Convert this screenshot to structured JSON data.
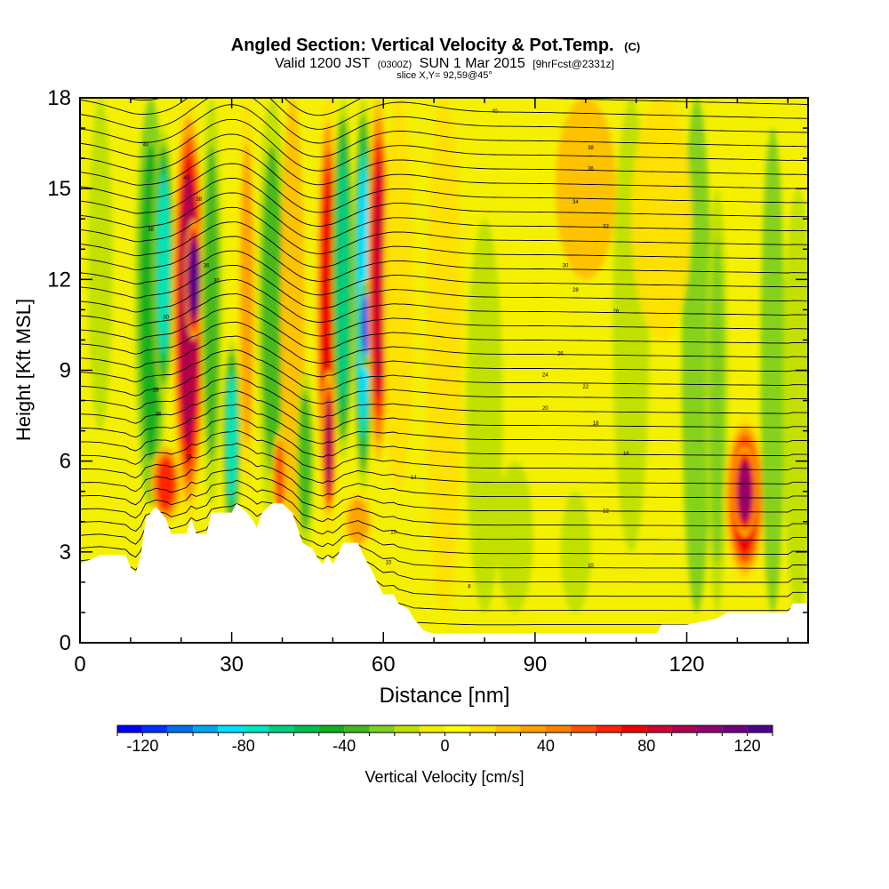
{
  "chart_data": {
    "type": "heatmap",
    "title": "Angled Section: Vertical Velocity & Pot.Temp.",
    "title_units": "(C)",
    "subtitle_parts": [
      "Valid 1200 JST",
      "(0300Z)",
      "SUN 1 Mar 2015",
      "[9hrFcst@2331z]"
    ],
    "slice_label": "slice X,Y= 92,59@45°",
    "xlabel": "Distance [nm]",
    "ylabel": "Height [Kft MSL]",
    "xlim": [
      0,
      144
    ],
    "ylim": [
      0,
      18
    ],
    "x_ticks": [
      "0",
      "30",
      "60",
      "90",
      "120"
    ],
    "x_tick_values": [
      0,
      30,
      60,
      90,
      120
    ],
    "y_ticks": [
      "0",
      "3",
      "6",
      "9",
      "12",
      "15",
      "18"
    ],
    "y_tick_values": [
      0,
      3,
      6,
      9,
      12,
      15,
      18
    ],
    "colorbar": {
      "label": "Vertical Velocity [cm/s]",
      "min": -130,
      "max": 130,
      "step": 10,
      "tick_labels": [
        "-120",
        "-80",
        "-40",
        "0",
        "40",
        "80",
        "120"
      ],
      "tick_values": [
        -120,
        -80,
        -40,
        0,
        40,
        80,
        120
      ],
      "colors": [
        "#0000ff",
        "#0030ff",
        "#0070f0",
        "#00a8f0",
        "#00e0ff",
        "#00e8c0",
        "#00d080",
        "#00c050",
        "#10b020",
        "#40b820",
        "#80d020",
        "#c0e000",
        "#f0f000",
        "#ffff00",
        "#ffe000",
        "#ffc000",
        "#ffa000",
        "#ff8000",
        "#ff5000",
        "#ff2000",
        "#f00000",
        "#d00030",
        "#b00050",
        "#900070",
        "#700080",
        "#500090"
      ]
    },
    "velocity_features": [
      {
        "x": 4,
        "w": 2,
        "y0": 7,
        "y1": 18,
        "v": -15
      },
      {
        "x": 14,
        "w": 2.5,
        "y0": 4.5,
        "y1": 18,
        "v": -45
      },
      {
        "x": 16.5,
        "w": 1.8,
        "y0": 8,
        "y1": 17,
        "v": -75
      },
      {
        "x": 17,
        "w": 2.5,
        "y0": 4,
        "y1": 6.5,
        "v": 60
      },
      {
        "x": 21.5,
        "w": 2.8,
        "y0": 4,
        "y1": 18,
        "v": 95
      },
      {
        "x": 22.5,
        "w": 1.5,
        "y0": 10,
        "y1": 14,
        "v": 120
      },
      {
        "x": 26,
        "w": 1.8,
        "y0": 4.5,
        "y1": 18,
        "v": -40
      },
      {
        "x": 30,
        "w": 1.5,
        "y0": 3.5,
        "y1": 10,
        "v": -80
      },
      {
        "x": 33,
        "w": 1.5,
        "y0": 5,
        "y1": 18,
        "v": 30
      },
      {
        "x": 38,
        "w": 2.5,
        "y0": 4,
        "y1": 18,
        "v": -35
      },
      {
        "x": 39.5,
        "w": 1.3,
        "y0": 4,
        "y1": 7,
        "v": 50
      },
      {
        "x": 42,
        "w": 2,
        "y0": 3.5,
        "y1": 18,
        "v": 25
      },
      {
        "x": 44.5,
        "w": 1.5,
        "y0": 3,
        "y1": 9,
        "v": -35
      },
      {
        "x": 49,
        "w": 2,
        "y0": 3.5,
        "y1": 18,
        "v": 75
      },
      {
        "x": 49.2,
        "w": 1.2,
        "y0": 4,
        "y1": 9,
        "v": 90
      },
      {
        "x": 52,
        "w": 1.8,
        "y0": 6,
        "y1": 18,
        "v": -70
      },
      {
        "x": 56,
        "w": 1.7,
        "y0": 5,
        "y1": 18,
        "v": -90
      },
      {
        "x": 56.5,
        "w": 1.2,
        "y0": 9,
        "y1": 12,
        "v": -120
      },
      {
        "x": 59,
        "w": 1.8,
        "y0": 6,
        "y1": 18,
        "v": 80
      },
      {
        "x": 55,
        "w": 2.5,
        "y0": 3,
        "y1": 5,
        "v": 35
      },
      {
        "x": 63,
        "w": 2.5,
        "y0": 5,
        "y1": 18,
        "v": 15
      },
      {
        "x": 72,
        "w": 3,
        "y0": 1,
        "y1": 18,
        "v": 18
      },
      {
        "x": 80,
        "w": 3,
        "y0": 1,
        "y1": 14,
        "v": -12
      },
      {
        "x": 86,
        "w": 3,
        "y0": 1,
        "y1": 6,
        "v": -15
      },
      {
        "x": 98,
        "w": 2.5,
        "y0": 1,
        "y1": 5,
        "v": -20
      },
      {
        "x": 109,
        "w": 3,
        "y0": 3,
        "y1": 18,
        "v": -18
      },
      {
        "x": 122,
        "w": 2.5,
        "y0": 1,
        "y1": 18,
        "v": -25
      },
      {
        "x": 126,
        "w": 1.8,
        "y0": 1,
        "y1": 15,
        "v": -30
      },
      {
        "x": 131.5,
        "w": 3.5,
        "y0": 2,
        "y1": 7.5,
        "v": 70
      },
      {
        "x": 131.5,
        "w": 2,
        "y0": 3.5,
        "y1": 6.5,
        "v": 100
      },
      {
        "x": 137,
        "w": 2,
        "y0": 1,
        "y1": 17,
        "v": -25
      },
      {
        "x": 142,
        "w": 2.5,
        "y0": 1,
        "y1": 15,
        "v": -15
      },
      {
        "x": 100,
        "w": 5,
        "y0": 12,
        "y1": 18,
        "v": 25
      },
      {
        "x": 115,
        "w": 5,
        "y0": 10,
        "y1": 18,
        "v": 15
      }
    ],
    "terrain": [
      [
        0,
        2.6
      ],
      [
        4,
        2.9
      ],
      [
        9,
        2.9
      ],
      [
        10,
        2.5
      ],
      [
        11,
        2.3
      ],
      [
        12,
        2.9
      ],
      [
        13,
        4.1
      ],
      [
        14,
        4.3
      ],
      [
        15,
        4.5
      ],
      [
        16,
        4.3
      ],
      [
        17,
        4.1
      ],
      [
        18,
        3.6
      ],
      [
        20,
        3.6
      ],
      [
        21,
        3.6
      ],
      [
        22,
        4.1
      ],
      [
        23,
        3.6
      ],
      [
        25,
        3.6
      ],
      [
        26,
        4.3
      ],
      [
        28,
        4.3
      ],
      [
        30,
        4.3
      ],
      [
        31,
        4.6
      ],
      [
        33,
        4.3
      ],
      [
        34,
        4.1
      ],
      [
        35,
        3.8
      ],
      [
        36,
        4.3
      ],
      [
        38,
        4.6
      ],
      [
        40,
        4.6
      ],
      [
        42,
        4.3
      ],
      [
        43,
        3.8
      ],
      [
        44,
        3.3
      ],
      [
        46,
        3.1
      ],
      [
        47,
        2.8
      ],
      [
        48,
        2.6
      ],
      [
        49,
        2.9
      ],
      [
        50,
        2.6
      ],
      [
        51,
        2.9
      ],
      [
        52,
        3.3
      ],
      [
        55,
        3.3
      ],
      [
        56,
        2.9
      ],
      [
        57,
        2.6
      ],
      [
        58,
        2.3
      ],
      [
        59,
        1.9
      ],
      [
        60,
        1.6
      ],
      [
        62,
        1.6
      ],
      [
        63,
        1.3
      ],
      [
        65,
        1.1
      ],
      [
        66,
        0.8
      ],
      [
        67,
        0.6
      ],
      [
        68,
        0.4
      ],
      [
        70,
        0.3
      ],
      [
        110,
        0.3
      ],
      [
        114,
        0.3
      ],
      [
        115,
        0.6
      ],
      [
        120,
        0.6
      ],
      [
        126,
        0.8
      ],
      [
        128,
        1.0
      ],
      [
        132,
        1.0
      ],
      [
        140,
        1.0
      ],
      [
        141,
        1.3
      ],
      [
        144,
        1.3
      ]
    ],
    "theta_contour_labels": [
      {
        "text": "40",
        "x": 82,
        "y": 17.5
      },
      {
        "text": "40",
        "x": 13,
        "y": 16.4
      },
      {
        "text": "38",
        "x": 101,
        "y": 16.3
      },
      {
        "text": "36",
        "x": 101,
        "y": 15.6
      },
      {
        "text": "40",
        "x": 21,
        "y": 15.3
      },
      {
        "text": "38",
        "x": 23.5,
        "y": 14.6
      },
      {
        "text": "34",
        "x": 98,
        "y": 14.5
      },
      {
        "text": "38",
        "x": 14,
        "y": 13.6
      },
      {
        "text": "32",
        "x": 104,
        "y": 13.7
      },
      {
        "text": "36",
        "x": 25,
        "y": 12.4
      },
      {
        "text": "30",
        "x": 96,
        "y": 12.4
      },
      {
        "text": "30",
        "x": 27,
        "y": 11.9
      },
      {
        "text": "28",
        "x": 98,
        "y": 11.6
      },
      {
        "text": "30",
        "x": 17,
        "y": 10.7
      },
      {
        "text": "26",
        "x": 106,
        "y": 10.9
      },
      {
        "text": "26",
        "x": 95,
        "y": 9.5
      },
      {
        "text": "24",
        "x": 92,
        "y": 8.8
      },
      {
        "text": "22",
        "x": 100,
        "y": 8.4
      },
      {
        "text": "28",
        "x": 15,
        "y": 8.3
      },
      {
        "text": "20",
        "x": 92,
        "y": 7.7
      },
      {
        "text": "26",
        "x": 15.5,
        "y": 7.5
      },
      {
        "text": "18",
        "x": 102,
        "y": 7.2
      },
      {
        "text": "16",
        "x": 108,
        "y": 6.2
      },
      {
        "text": "14",
        "x": 66,
        "y": 5.4
      },
      {
        "text": "16",
        "x": 21.5,
        "y": 6.1
      },
      {
        "text": "12",
        "x": 104,
        "y": 4.3
      },
      {
        "text": "10",
        "x": 62,
        "y": 3.6
      },
      {
        "text": "10",
        "x": 61,
        "y": 2.6
      },
      {
        "text": "10",
        "x": 101,
        "y": 2.5
      },
      {
        "text": "8",
        "x": 77,
        "y": 1.8
      }
    ]
  }
}
